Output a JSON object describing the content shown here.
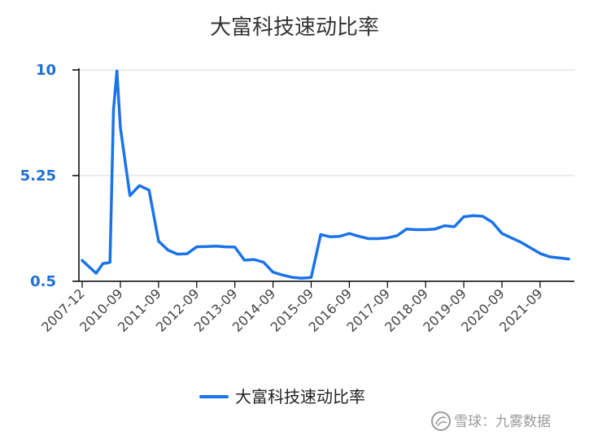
{
  "chart_data": {
    "type": "line",
    "title": "大富科技速动比率",
    "xlabel": "",
    "ylabel": "",
    "ylim": [
      0.5,
      10
    ],
    "yticks": [
      "0.5",
      "5.25",
      "10"
    ],
    "grid": true,
    "legend_position": "bottom",
    "xticks": [
      "2007-12",
      "2010-09",
      "2011-09",
      "2012-09",
      "2013-09",
      "2014-09",
      "2015-09",
      "2016-09",
      "2017-09",
      "2018-09",
      "2019-09",
      "2020-09",
      "2021-09"
    ],
    "x": [
      "2007-12",
      "2008-12",
      "2009-06",
      "2009-09",
      "2009-12",
      "2010-03",
      "2010-06",
      "2010-09",
      "2010-12",
      "2011-03",
      "2011-06",
      "2011-09",
      "2011-12",
      "2012-03",
      "2012-06",
      "2012-09",
      "2012-12",
      "2013-03",
      "2013-06",
      "2013-09",
      "2013-12",
      "2014-03",
      "2014-06",
      "2014-09",
      "2014-12",
      "2015-03",
      "2015-06",
      "2015-09",
      "2015-12",
      "2016-03",
      "2016-06",
      "2016-09",
      "2016-12",
      "2017-03",
      "2017-06",
      "2017-09",
      "2017-12",
      "2018-03",
      "2018-06",
      "2018-09",
      "2018-12",
      "2019-03",
      "2019-06",
      "2019-09",
      "2019-12",
      "2020-03",
      "2020-06",
      "2020-09",
      "2020-12",
      "2021-03",
      "2021-06",
      "2021-09",
      "2021-12",
      "2022-03",
      "2022-06"
    ],
    "series": [
      {
        "name": "大富科技速动比率",
        "color": "#1a73e8",
        "values": [
          1.44,
          0.86,
          1.3,
          1.32,
          1.35,
          8.2,
          9.95,
          7.4,
          4.35,
          4.8,
          4.6,
          2.3,
          1.9,
          1.72,
          1.74,
          2.05,
          2.06,
          2.08,
          2.05,
          2.04,
          1.45,
          1.48,
          1.36,
          0.91,
          0.78,
          0.68,
          0.64,
          0.67,
          2.6,
          2.5,
          2.52,
          2.65,
          2.52,
          2.42,
          2.42,
          2.45,
          2.55,
          2.85,
          2.82,
          2.82,
          2.85,
          3.0,
          2.95,
          3.4,
          3.45,
          3.42,
          3.15,
          2.65,
          2.45,
          2.25,
          2.0,
          1.75,
          1.6,
          1.55,
          1.5
        ]
      }
    ]
  },
  "watermark": "雪球：九雾数据"
}
